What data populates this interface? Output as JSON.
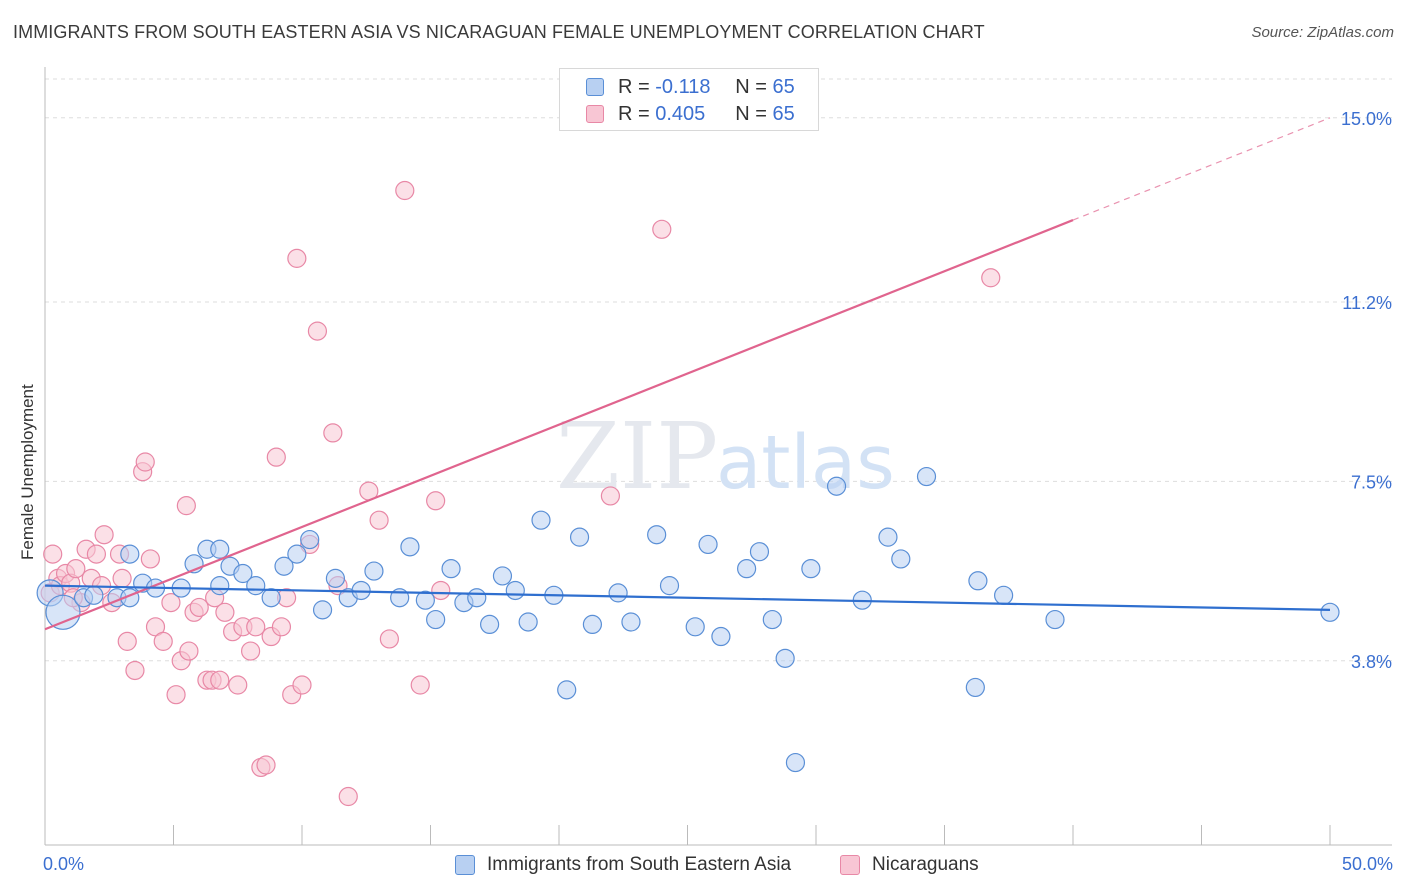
{
  "header": {
    "title": "IMMIGRANTS FROM SOUTH EASTERN ASIA VS NICARAGUAN FEMALE UNEMPLOYMENT CORRELATION CHART",
    "source": "Source: ZipAtlas.com"
  },
  "watermark": {
    "zip": "ZIP",
    "atlas": "atlas"
  },
  "legend_top": {
    "r_label": "R =",
    "n_label": "N =",
    "rows": [
      {
        "r": "-0.118",
        "n": "65"
      },
      {
        "r": "0.405",
        "n": "65"
      }
    ]
  },
  "colors": {
    "blue_fill": "#b8d0f2",
    "blue_stroke": "#5a8fd6",
    "blue_line": "#2f6fcf",
    "pink_fill": "#f8c6d4",
    "pink_stroke": "#e888a6",
    "pink_line": "#e0648e",
    "tick_text": "#3b6fd0",
    "grid": "#dddddd"
  },
  "chart_data": {
    "type": "scatter",
    "title": "IMMIGRANTS FROM SOUTH EASTERN ASIA VS NICARAGUAN FEMALE UNEMPLOYMENT CORRELATION CHART",
    "xlabel": "",
    "ylabel": "Female Unemployment",
    "xlim": [
      0,
      50
    ],
    "ylim": [
      0,
      15.8
    ],
    "x_tick_labels": [
      "0.0%",
      "50.0%"
    ],
    "y_ticks": [
      3.8,
      7.5,
      11.2,
      15.0
    ],
    "y_tick_labels": [
      "3.8%",
      "7.5%",
      "11.2%",
      "15.0%"
    ],
    "grid": true,
    "series": [
      {
        "name": "Immigrants from South Eastern Asia",
        "r": -0.118,
        "n": 65,
        "trend": {
          "x": [
            0,
            50
          ],
          "y": [
            5.35,
            4.85
          ],
          "solid_to": 50
        },
        "points": [
          [
            0.2,
            5.2
          ],
          [
            0.7,
            4.8
          ],
          [
            1.5,
            5.1
          ],
          [
            2.8,
            5.1
          ],
          [
            3.3,
            5.1
          ],
          [
            3.3,
            6.0
          ],
          [
            3.8,
            5.4
          ],
          [
            4.3,
            5.3
          ],
          [
            5.3,
            5.3
          ],
          [
            5.8,
            5.8
          ],
          [
            6.3,
            6.1
          ],
          [
            6.8,
            6.1
          ],
          [
            7.2,
            5.75
          ],
          [
            7.7,
            5.6
          ],
          [
            8.2,
            5.35
          ],
          [
            8.8,
            5.1
          ],
          [
            9.3,
            5.75
          ],
          [
            9.8,
            6.0
          ],
          [
            10.3,
            6.3
          ],
          [
            10.8,
            4.85
          ],
          [
            11.3,
            5.5
          ],
          [
            11.8,
            5.1
          ],
          [
            12.3,
            5.25
          ],
          [
            12.8,
            5.65
          ],
          [
            13.8,
            5.1
          ],
          [
            14.2,
            6.15
          ],
          [
            14.8,
            5.05
          ],
          [
            15.2,
            4.65
          ],
          [
            15.8,
            5.7
          ],
          [
            16.3,
            5.0
          ],
          [
            16.8,
            5.1
          ],
          [
            17.3,
            4.55
          ],
          [
            17.8,
            5.55
          ],
          [
            18.3,
            5.25
          ],
          [
            18.8,
            4.6
          ],
          [
            19.3,
            6.7
          ],
          [
            19.8,
            5.15
          ],
          [
            20.3,
            3.2
          ],
          [
            20.8,
            6.35
          ],
          [
            21.3,
            4.55
          ],
          [
            22.3,
            5.2
          ],
          [
            22.8,
            4.6
          ],
          [
            23.8,
            6.4
          ],
          [
            24.3,
            5.35
          ],
          [
            25.3,
            4.5
          ],
          [
            25.8,
            6.2
          ],
          [
            26.3,
            4.3
          ],
          [
            27.3,
            5.7
          ],
          [
            27.8,
            6.05
          ],
          [
            28.3,
            4.65
          ],
          [
            28.8,
            3.85
          ],
          [
            29.2,
            1.7
          ],
          [
            29.8,
            5.7
          ],
          [
            30.8,
            7.4
          ],
          [
            31.8,
            5.05
          ],
          [
            32.8,
            6.35
          ],
          [
            33.3,
            5.9
          ],
          [
            34.3,
            7.6
          ],
          [
            36.2,
            3.25
          ],
          [
            36.3,
            5.45
          ],
          [
            37.3,
            5.15
          ],
          [
            39.3,
            4.65
          ],
          [
            50.0,
            4.8
          ],
          [
            1.9,
            5.15
          ],
          [
            6.8,
            5.35
          ]
        ]
      },
      {
        "name": "Nicaraguans",
        "r": 0.405,
        "n": 65,
        "trend": {
          "x": [
            0,
            50
          ],
          "y": [
            4.45,
            15.0
          ],
          "solid_to": 40
        },
        "points": [
          [
            0.2,
            5.2
          ],
          [
            0.3,
            6.0
          ],
          [
            0.5,
            5.5
          ],
          [
            0.6,
            5.35
          ],
          [
            0.8,
            5.6
          ],
          [
            1.0,
            5.4
          ],
          [
            1.2,
            5.7
          ],
          [
            1.4,
            5.0
          ],
          [
            1.6,
            6.1
          ],
          [
            1.8,
            5.5
          ],
          [
            2.0,
            6.0
          ],
          [
            2.3,
            6.4
          ],
          [
            2.6,
            5.0
          ],
          [
            2.9,
            6.0
          ],
          [
            3.2,
            4.2
          ],
          [
            3.5,
            3.6
          ],
          [
            3.8,
            7.7
          ],
          [
            3.9,
            7.9
          ],
          [
            4.1,
            5.9
          ],
          [
            4.3,
            4.5
          ],
          [
            4.6,
            4.2
          ],
          [
            4.9,
            5.0
          ],
          [
            5.1,
            3.1
          ],
          [
            5.3,
            3.8
          ],
          [
            5.5,
            7.0
          ],
          [
            5.6,
            4.0
          ],
          [
            5.8,
            4.8
          ],
          [
            6.0,
            4.9
          ],
          [
            6.3,
            3.4
          ],
          [
            6.5,
            3.4
          ],
          [
            6.6,
            5.1
          ],
          [
            6.8,
            3.4
          ],
          [
            7.0,
            4.8
          ],
          [
            7.3,
            4.4
          ],
          [
            7.5,
            3.3
          ],
          [
            7.7,
            4.5
          ],
          [
            8.0,
            4.0
          ],
          [
            8.2,
            4.5
          ],
          [
            8.4,
            1.6
          ],
          [
            8.6,
            1.65
          ],
          [
            8.8,
            4.3
          ],
          [
            9.0,
            8.0
          ],
          [
            9.2,
            4.5
          ],
          [
            9.4,
            5.1
          ],
          [
            9.6,
            3.1
          ],
          [
            9.8,
            12.1
          ],
          [
            10.0,
            3.3
          ],
          [
            10.3,
            6.2
          ],
          [
            10.6,
            10.6
          ],
          [
            11.2,
            8.5
          ],
          [
            11.4,
            5.35
          ],
          [
            11.8,
            1.0
          ],
          [
            12.6,
            7.3
          ],
          [
            13.0,
            6.7
          ],
          [
            13.4,
            4.25
          ],
          [
            14.0,
            13.5
          ],
          [
            14.6,
            3.3
          ],
          [
            15.2,
            7.1
          ],
          [
            15.4,
            5.25
          ],
          [
            22.0,
            7.2
          ],
          [
            24.0,
            12.7
          ],
          [
            36.8,
            11.7
          ],
          [
            3.0,
            5.5
          ],
          [
            2.2,
            5.35
          ],
          [
            1.1,
            5.1
          ]
        ]
      }
    ]
  }
}
